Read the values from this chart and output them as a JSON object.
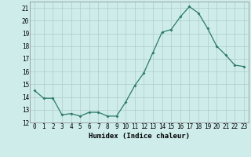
{
  "x": [
    0,
    1,
    2,
    3,
    4,
    5,
    6,
    7,
    8,
    9,
    10,
    11,
    12,
    13,
    14,
    15,
    16,
    17,
    18,
    19,
    20,
    21,
    22,
    23
  ],
  "y": [
    14.5,
    13.9,
    13.9,
    12.6,
    12.7,
    12.5,
    12.8,
    12.8,
    12.5,
    12.5,
    13.6,
    14.9,
    15.9,
    17.5,
    19.1,
    19.3,
    20.3,
    21.1,
    20.6,
    19.4,
    18.0,
    17.3,
    16.5,
    16.4
  ],
  "xlabel": "Humidex (Indice chaleur)",
  "xlim": [
    -0.5,
    23.5
  ],
  "ylim": [
    12,
    21.5
  ],
  "yticks": [
    12,
    13,
    14,
    15,
    16,
    17,
    18,
    19,
    20,
    21
  ],
  "xticks": [
    0,
    1,
    2,
    3,
    4,
    5,
    6,
    7,
    8,
    9,
    10,
    11,
    12,
    13,
    14,
    15,
    16,
    17,
    18,
    19,
    20,
    21,
    22,
    23
  ],
  "line_color": "#2d7a68",
  "bg_color": "#cdecea",
  "grid_color": "#b0ccca",
  "label_fontsize": 6.5,
  "tick_fontsize": 5.5
}
